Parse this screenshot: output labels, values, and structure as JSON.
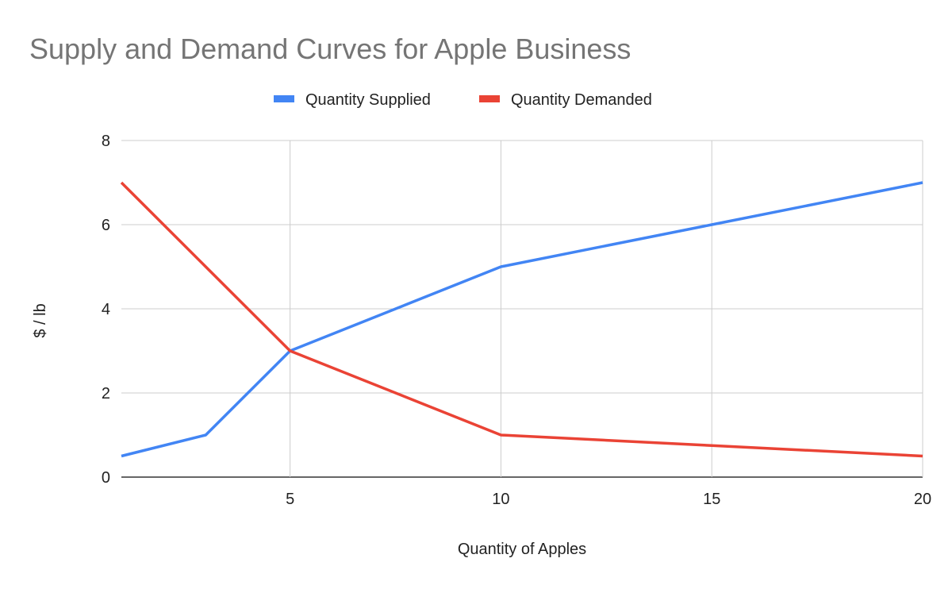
{
  "chart_data": {
    "type": "line",
    "title": "Supply and Demand Curves for Apple Business",
    "xlabel": "Quantity of Apples",
    "ylabel": "$ / lb",
    "xlim": [
      1,
      20
    ],
    "ylim": [
      0,
      8
    ],
    "xticks": [
      5,
      10,
      15,
      20
    ],
    "yticks": [
      0,
      2,
      4,
      6,
      8
    ],
    "grid": true,
    "legend_position": "top",
    "series": [
      {
        "name": "Quantity Supplied",
        "color": "#4285f4",
        "x": [
          1,
          3,
          5,
          10,
          15,
          20
        ],
        "y": [
          0.5,
          1,
          3,
          5,
          6,
          7
        ]
      },
      {
        "name": "Quantity Demanded",
        "color": "#ea4335",
        "x": [
          1,
          3,
          5,
          10,
          15,
          20
        ],
        "y": [
          7,
          5,
          3,
          1,
          0.75,
          0.5
        ]
      }
    ]
  }
}
